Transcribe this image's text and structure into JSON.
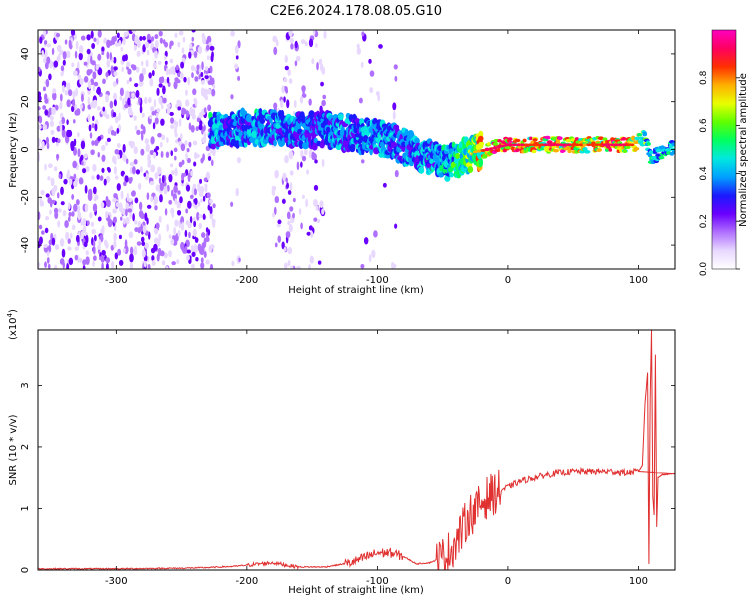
{
  "title": "C2E6.2024.178.08.05.G10",
  "spectrogram": {
    "type": "heatmap",
    "xlabel": "Height of straight line (km)",
    "ylabel": "Frequency (Hz)",
    "xlim": [
      -360,
      128
    ],
    "ylim": [
      -50,
      50
    ],
    "xticks": [
      -300,
      -200,
      -100,
      0,
      100
    ],
    "yticks": [
      -40,
      -20,
      0,
      20,
      40
    ],
    "ridge": [
      {
        "x": -228,
        "f": 8,
        "amp": 0.45
      },
      {
        "x": -210,
        "f": 9,
        "amp": 0.4
      },
      {
        "x": -195,
        "f": 9,
        "amp": 0.45
      },
      {
        "x": -180,
        "f": 9,
        "amp": 0.4
      },
      {
        "x": -165,
        "f": 8,
        "amp": 0.4
      },
      {
        "x": -150,
        "f": 8,
        "amp": 0.35
      },
      {
        "x": -135,
        "f": 8,
        "amp": 0.4
      },
      {
        "x": -120,
        "f": 7,
        "amp": 0.4
      },
      {
        "x": -105,
        "f": 5,
        "amp": 0.45
      },
      {
        "x": -90,
        "f": 4,
        "amp": 0.4
      },
      {
        "x": -75,
        "f": 0,
        "amp": 0.4
      },
      {
        "x": -60,
        "f": -3,
        "amp": 0.45
      },
      {
        "x": -45,
        "f": -6,
        "amp": 0.5
      },
      {
        "x": -35,
        "f": -3,
        "amp": 0.6
      },
      {
        "x": -25,
        "f": -1,
        "amp": 0.7
      },
      {
        "x": -15,
        "f": 0,
        "amp": 0.85
      },
      {
        "x": 0,
        "f": 2,
        "amp": 0.9
      },
      {
        "x": 20,
        "f": 2,
        "amp": 0.8
      },
      {
        "x": 40,
        "f": 2,
        "amp": 0.9
      },
      {
        "x": 60,
        "f": 2,
        "amp": 0.75
      },
      {
        "x": 80,
        "f": 2,
        "amp": 0.9
      },
      {
        "x": 95,
        "f": 2,
        "amp": 0.8
      },
      {
        "x": 105,
        "f": 5,
        "amp": 0.6
      },
      {
        "x": 110,
        "f": -3,
        "amp": 0.5
      },
      {
        "x": 128,
        "f": 1,
        "amp": 0.5
      }
    ],
    "noise_regions": [
      {
        "x": [
          -360,
          -225
        ],
        "density": 0.85
      },
      {
        "x": [
          -212,
          -205
        ],
        "density": 0.3
      },
      {
        "x": [
          -180,
          -140
        ],
        "density": 0.4
      },
      {
        "x": [
          -115,
          -85
        ],
        "density": 0.12
      }
    ]
  },
  "colorbar": {
    "label": "Normalized spectral amplitude",
    "range": [
      0,
      1
    ],
    "ticks": [
      0.0,
      0.2,
      0.4,
      0.6,
      0.8
    ],
    "tick_labels": [
      "0.0",
      "0.2",
      "0.4",
      "0.6",
      "0.8"
    ],
    "colors": [
      "#ffffff",
      "#e8d8ff",
      "#b070ff",
      "#6a00ff",
      "#1a1aff",
      "#00a0ff",
      "#00e8e0",
      "#00ff60",
      "#60ff00",
      "#e8ff00",
      "#ffb000",
      "#ff3000",
      "#ff0060",
      "#ff00c0"
    ]
  },
  "snr": {
    "type": "line",
    "xlabel": "Height of straight line (km)",
    "ylabel": "SNR (10 * v/v)",
    "scale_label": "(x10",
    "scale_exp": "4",
    "scale_close": ")",
    "xlim": [
      -360,
      128
    ],
    "ylim": [
      0,
      3.9
    ],
    "xticks": [
      -300,
      -200,
      -100,
      0,
      100
    ],
    "yticks": [
      0,
      1,
      2,
      3
    ],
    "color": "#e03030",
    "x": [
      -360,
      -300,
      -250,
      -230,
      -210,
      -190,
      -180,
      -170,
      -160,
      -140,
      -120,
      -110,
      -100,
      -90,
      -80,
      -70,
      -60,
      -50,
      -45,
      -40,
      -35,
      -30,
      -25,
      -20,
      -15,
      -10,
      -5,
      0,
      10,
      20,
      30,
      40,
      50,
      60,
      70,
      80,
      90,
      100,
      103,
      105,
      107,
      108,
      109,
      110,
      111,
      112,
      113,
      114,
      115,
      118,
      128
    ],
    "y": [
      0.02,
      0.02,
      0.03,
      0.04,
      0.06,
      0.1,
      0.12,
      0.08,
      0.05,
      0.05,
      0.12,
      0.2,
      0.28,
      0.28,
      0.22,
      0.1,
      0.12,
      0.2,
      0.3,
      0.45,
      0.65,
      0.9,
      0.95,
      1.1,
      1.2,
      1.25,
      1.3,
      1.35,
      1.45,
      1.5,
      1.55,
      1.58,
      1.6,
      1.6,
      1.6,
      1.6,
      1.58,
      1.6,
      1.7,
      2.7,
      3.2,
      0.1,
      2.8,
      3.9,
      1.2,
      0.9,
      3.5,
      0.7,
      1.5,
      1.55,
      1.57
    ]
  }
}
